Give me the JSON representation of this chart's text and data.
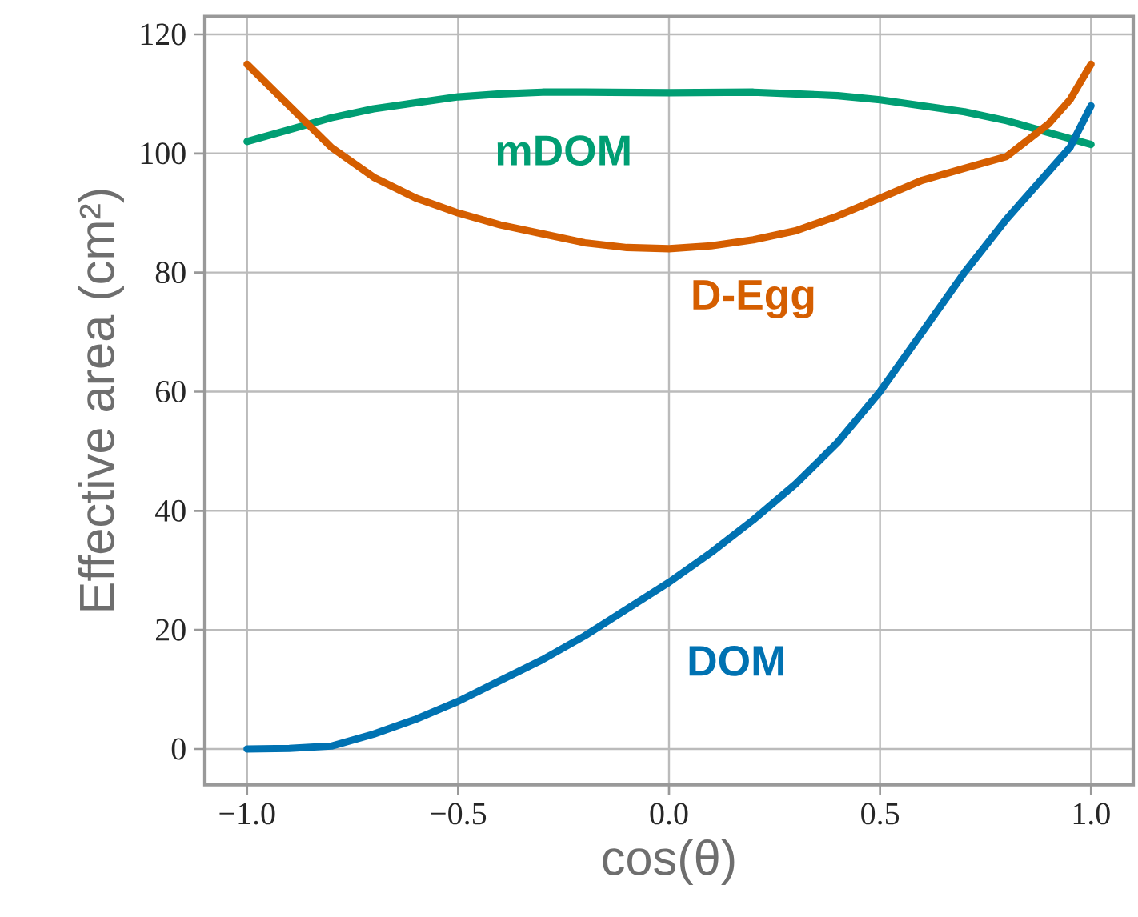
{
  "chart_data": {
    "type": "line",
    "xlabel": "cos(θ)",
    "ylabel": "Effective area (cm²)",
    "xlim": [
      -1.1,
      1.1
    ],
    "ylim": [
      -6,
      123
    ],
    "xticks": [
      {
        "value": -1,
        "label": "−1.0"
      },
      {
        "value": -0.5,
        "label": "−0.5"
      },
      {
        "value": 0,
        "label": "0.0"
      },
      {
        "value": 0.5,
        "label": "0.5"
      },
      {
        "value": 1,
        "label": "1.0"
      }
    ],
    "yticks": [
      0,
      20,
      40,
      60,
      80,
      100,
      120
    ],
    "grid": true,
    "legend": false,
    "marker": "none",
    "line_style": "solid",
    "series": [
      {
        "name": "mDOM",
        "color": "#009e73",
        "x": [
          -1,
          -0.9,
          -0.8,
          -0.7,
          -0.6,
          -0.5,
          -0.4,
          -0.3,
          -0.2,
          0,
          0.2,
          0.3,
          0.4,
          0.5,
          0.6,
          0.7,
          0.8,
          0.9,
          1
        ],
        "values": [
          102,
          104,
          106,
          107.5,
          108.5,
          109.5,
          110,
          110.3,
          110.3,
          110.2,
          110.3,
          110,
          109.7,
          109,
          108,
          107,
          105.5,
          103.5,
          101.5
        ]
      },
      {
        "name": "D-Egg",
        "color": "#d55e00",
        "x": [
          -1,
          -0.9,
          -0.8,
          -0.7,
          -0.6,
          -0.5,
          -0.4,
          -0.3,
          -0.2,
          -0.1,
          0,
          0.1,
          0.2,
          0.3,
          0.4,
          0.5,
          0.6,
          0.7,
          0.8,
          0.9,
          0.95,
          1
        ],
        "values": [
          115,
          108,
          101,
          96,
          92.5,
          90,
          88,
          86.5,
          85,
          84.2,
          84,
          84.5,
          85.5,
          87,
          89.5,
          92.5,
          95.5,
          97.5,
          99.5,
          105,
          109,
          115
        ]
      },
      {
        "name": "DOM",
        "color": "#0072b2",
        "x": [
          -1,
          -0.9,
          -0.8,
          -0.7,
          -0.6,
          -0.5,
          -0.4,
          -0.3,
          -0.2,
          -0.1,
          0,
          0.1,
          0.2,
          0.3,
          0.4,
          0.5,
          0.6,
          0.7,
          0.8,
          0.9,
          0.95,
          1
        ],
        "values": [
          0,
          0.1,
          0.5,
          2.5,
          5,
          8,
          11.5,
          15,
          19,
          23.5,
          28,
          33,
          38.5,
          44.5,
          51.5,
          60,
          70,
          80,
          89,
          97,
          101,
          108
        ]
      }
    ]
  }
}
